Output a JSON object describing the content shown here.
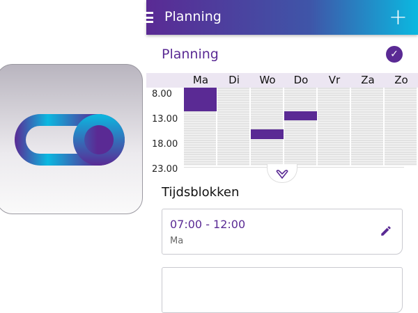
{
  "header": {
    "title": "Planning",
    "menu_icon": "hamburger-icon",
    "add_icon": "plus-icon"
  },
  "colors": {
    "accent": "#5a2a94",
    "gradient_end": "#0bb8e0",
    "day_header_bg": "#ece6f2"
  },
  "planning": {
    "title": "Planning",
    "status_icon": "check-circle-icon"
  },
  "schedule": {
    "days": [
      "Ma",
      "Di",
      "Wo",
      "Do",
      "Vr",
      "Za",
      "Zo"
    ],
    "time_labels": [
      "8.00",
      "13.00",
      "18.00",
      "23.00"
    ],
    "blocks": [
      {
        "day": "Ma",
        "start": 7,
        "end": 12
      },
      {
        "day": "Do",
        "start": 12,
        "end": 14
      },
      {
        "day": "Wo",
        "start": 16,
        "end": 18
      }
    ]
  },
  "timeblocks": {
    "title": "Tijdsblokken",
    "items": [
      {
        "range": "07:00 - 12:00",
        "day": "Ma"
      }
    ]
  }
}
